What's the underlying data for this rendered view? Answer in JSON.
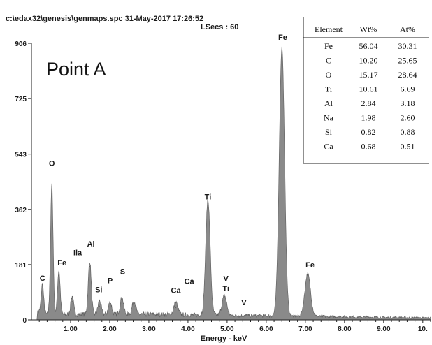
{
  "header": {
    "file_line": "c:\\edax32\\genesis\\genmaps.spc  31-May-2017 17:26:52",
    "lsecs_line": "LSecs : 60"
  },
  "annotation": "Point A",
  "table": {
    "headers": [
      "Element",
      "Wt%",
      "At%"
    ],
    "rows": [
      [
        "Fe",
        "56.04",
        "30.31"
      ],
      [
        "C",
        "10.20",
        "25.65"
      ],
      [
        "O",
        "15.17",
        "28.64"
      ],
      [
        "Ti",
        "10.61",
        "6.69"
      ],
      [
        "Al",
        "2.84",
        "3.18"
      ],
      [
        "Na",
        "1.98",
        "2.60"
      ],
      [
        "Si",
        "0.82",
        "0.88"
      ],
      [
        "Ca",
        "0.68",
        "0.51"
      ]
    ]
  },
  "colors": {
    "spectrum": "#8a8a8a",
    "axis": "#222222"
  },
  "chart_data": {
    "type": "area",
    "xlabel": "Energy - keV",
    "ylabel": "",
    "xlim": [
      0,
      10.2
    ],
    "ylim": [
      0,
      906
    ],
    "x_ticks": [
      {
        "value": 1,
        "label": "1.00"
      },
      {
        "value": 2,
        "label": "2.00"
      },
      {
        "value": 3,
        "label": "3.00"
      },
      {
        "value": 4,
        "label": "4.00"
      },
      {
        "value": 5,
        "label": "5.00"
      },
      {
        "value": 6,
        "label": "6.00"
      },
      {
        "value": 7,
        "label": "7.00"
      },
      {
        "value": 8,
        "label": "8.00"
      },
      {
        "value": 9,
        "label": "9.00"
      },
      {
        "value": 10,
        "label": "10."
      }
    ],
    "y_ticks": [
      {
        "value": 0,
        "label": "0"
      },
      {
        "value": 181,
        "label": "181"
      },
      {
        "value": 362,
        "label": "362"
      },
      {
        "value": 543,
        "label": "543"
      },
      {
        "value": 725,
        "label": "725"
      },
      {
        "value": 906,
        "label": "906"
      }
    ],
    "background_counts": 18,
    "peaks": [
      {
        "x": 0.28,
        "y": 95
      },
      {
        "x": 0.52,
        "y": 425
      },
      {
        "x": 0.7,
        "y": 145
      },
      {
        "x": 1.04,
        "y": 60
      },
      {
        "x": 1.49,
        "y": 175
      },
      {
        "x": 1.74,
        "y": 45
      },
      {
        "x": 2.01,
        "y": 40
      },
      {
        "x": 2.31,
        "y": 55
      },
      {
        "x": 2.62,
        "y": 45
      },
      {
        "x": 3.69,
        "y": 40
      },
      {
        "x": 4.51,
        "y": 380
      },
      {
        "x": 4.93,
        "y": 65
      },
      {
        "x": 6.4,
        "y": 880
      },
      {
        "x": 7.06,
        "y": 140
      }
    ],
    "peak_labels": [
      {
        "text": "C",
        "x": 0.28,
        "y": 128
      },
      {
        "text": "O",
        "x": 0.52,
        "y": 505
      },
      {
        "text": "Fe",
        "x": 0.78,
        "y": 178
      },
      {
        "text": "Ila",
        "x": 1.18,
        "y": 212
      },
      {
        "text": "Al",
        "x": 1.52,
        "y": 240
      },
      {
        "text": "Si",
        "x": 1.72,
        "y": 90
      },
      {
        "text": "P",
        "x": 2.01,
        "y": 120
      },
      {
        "text": "S",
        "x": 2.33,
        "y": 150
      },
      {
        "text": "Ca",
        "x": 3.69,
        "y": 88
      },
      {
        "text": "Ca",
        "x": 4.03,
        "y": 118
      },
      {
        "text": "Ti",
        "x": 4.51,
        "y": 395
      },
      {
        "text": "V",
        "x": 4.97,
        "y": 127
      },
      {
        "text": "Ti",
        "x": 4.97,
        "y": 94
      },
      {
        "text": "V",
        "x": 5.43,
        "y": 48
      },
      {
        "text": "Fe",
        "x": 6.42,
        "y": 918
      },
      {
        "text": "Fe",
        "x": 7.12,
        "y": 172
      }
    ]
  }
}
